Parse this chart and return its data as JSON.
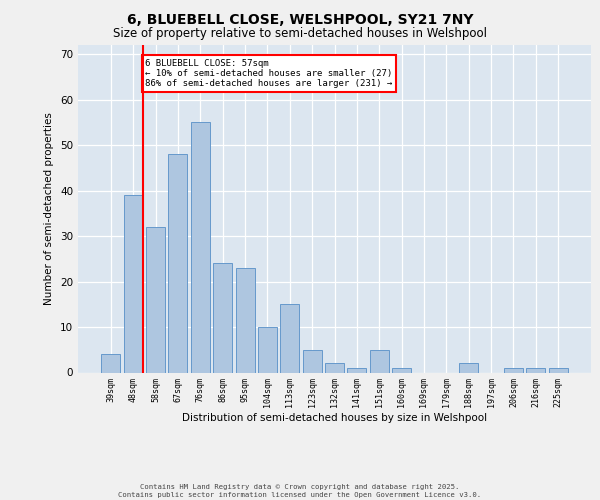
{
  "title1": "6, BLUEBELL CLOSE, WELSHPOOL, SY21 7NY",
  "title2": "Size of property relative to semi-detached houses in Welshpool",
  "xlabel": "Distribution of semi-detached houses by size in Welshpool",
  "ylabel": "Number of semi-detached properties",
  "categories": [
    "39sqm",
    "48sqm",
    "58sqm",
    "67sqm",
    "76sqm",
    "86sqm",
    "95sqm",
    "104sqm",
    "113sqm",
    "123sqm",
    "132sqm",
    "141sqm",
    "151sqm",
    "160sqm",
    "169sqm",
    "179sqm",
    "188sqm",
    "197sqm",
    "206sqm",
    "216sqm",
    "225sqm"
  ],
  "values": [
    4,
    39,
    32,
    48,
    55,
    24,
    23,
    10,
    15,
    5,
    2,
    1,
    5,
    1,
    0,
    0,
    2,
    0,
    1,
    1,
    1
  ],
  "bar_color": "#aec6e0",
  "bar_edge_color": "#6699cc",
  "background_color": "#dce6f0",
  "grid_color": "#ffffff",
  "vline_color": "red",
  "vline_x": 1.425,
  "annotation_text": "6 BLUEBELL CLOSE: 57sqm\n← 10% of semi-detached houses are smaller (27)\n86% of semi-detached houses are larger (231) →",
  "annotation_box_color": "white",
  "annotation_box_edge": "red",
  "ylim": [
    0,
    72
  ],
  "yticks": [
    0,
    10,
    20,
    30,
    40,
    50,
    60,
    70
  ],
  "fig_bg": "#f0f0f0",
  "footer1": "Contains HM Land Registry data © Crown copyright and database right 2025.",
  "footer2": "Contains public sector information licensed under the Open Government Licence v3.0."
}
